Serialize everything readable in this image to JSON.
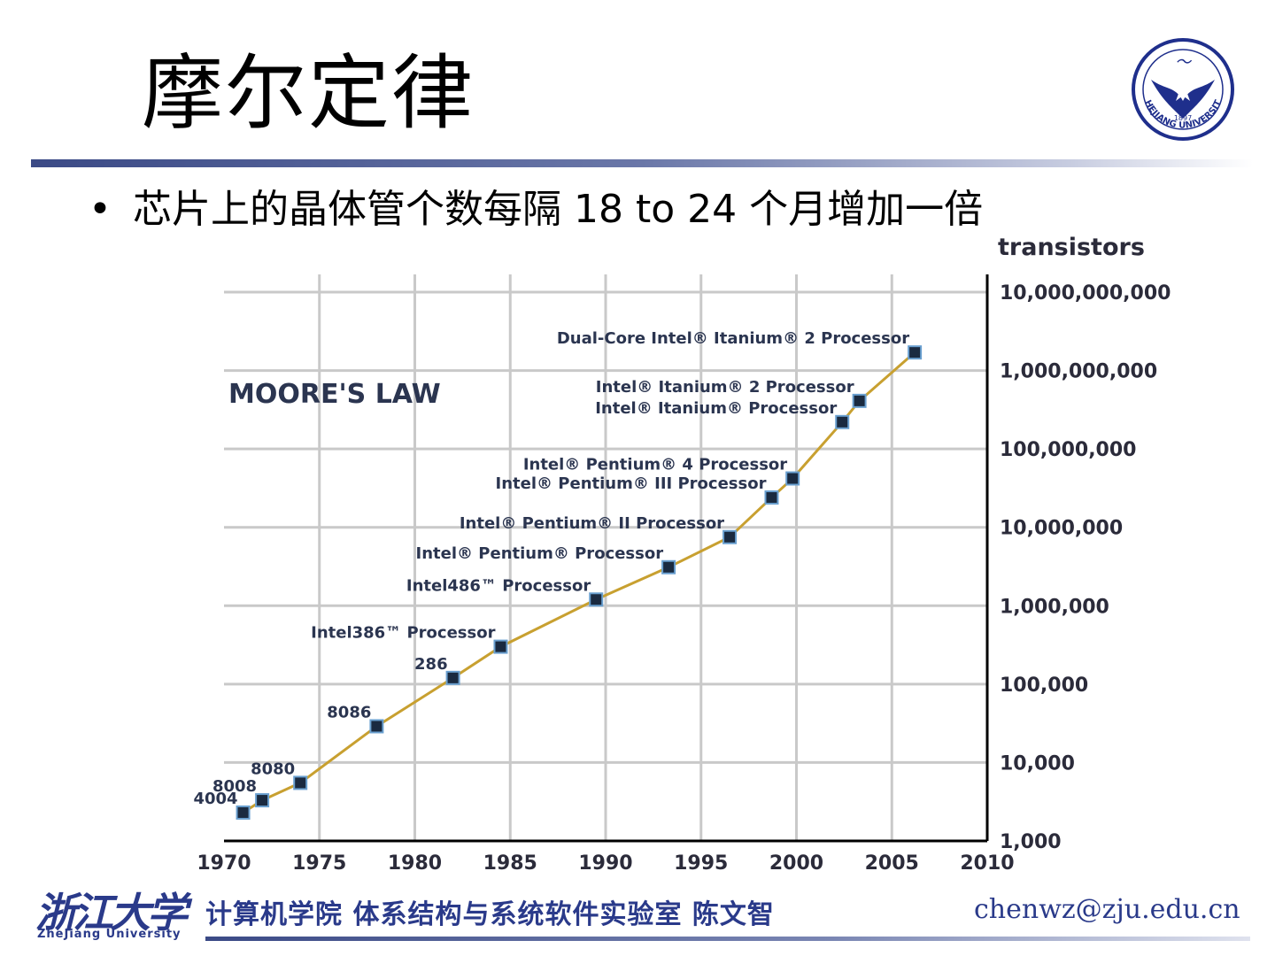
{
  "slide": {
    "title": "摩尔定律",
    "bullet": "芯片上的晶体管个数每隔 18 to 24 个月增加一倍"
  },
  "logo": {
    "icon": "zhejiang-university-seal-icon",
    "year": "1897",
    "text": "ZHEJIANG UNIVERSITY",
    "color": "#1f2f8c"
  },
  "footer": {
    "university_cn": "浙江大学",
    "university_en": "ZheJiang University",
    "lab": "计算机学院 体系结构与系统软件实验室 陈文智",
    "email": "chenwz@zju.edu.cn"
  },
  "chart_data": {
    "type": "line",
    "title": "MOORE'S LAW",
    "ylabel": "transistors",
    "xlabel": "",
    "yscale": "log",
    "xlim": [
      1970,
      2010
    ],
    "ylim": [
      1000,
      10000000000
    ],
    "x_ticks": [
      "1970",
      "1975",
      "1980",
      "1985",
      "1990",
      "1995",
      "2000",
      "2005",
      "2010"
    ],
    "y_ticks": [
      {
        "value": 10000000000,
        "label": "10,000,000,000"
      },
      {
        "value": 1000000000,
        "label": "1,000,000,000"
      },
      {
        "value": 100000000,
        "label": "100,000,000"
      },
      {
        "value": 10000000,
        "label": "10,000,000"
      },
      {
        "value": 1000000,
        "label": "1,000,000"
      },
      {
        "value": 100000,
        "label": "100,000"
      },
      {
        "value": 10000,
        "label": "10,000"
      },
      {
        "value": 1000,
        "label": "1,000"
      }
    ],
    "grid": true,
    "line_color": "#c8a030",
    "points": [
      {
        "label": "4004",
        "x": 1971,
        "y": 2300,
        "side": "left"
      },
      {
        "label": "8008",
        "x": 1972,
        "y": 3300,
        "side": "left"
      },
      {
        "label": "8080",
        "x": 1974,
        "y": 5500,
        "side": "left"
      },
      {
        "label": "8086",
        "x": 1978,
        "y": 29000,
        "side": "left"
      },
      {
        "label": "286",
        "x": 1982,
        "y": 120000,
        "side": "left"
      },
      {
        "label": "Intel386™ Processor",
        "x": 1984.5,
        "y": 300000,
        "side": "left"
      },
      {
        "label": "Intel486™ Processor",
        "x": 1989.5,
        "y": 1200000,
        "side": "left"
      },
      {
        "label": "Intel® Pentium® Processor",
        "x": 1993.3,
        "y": 3100000,
        "side": "left"
      },
      {
        "label": "Intel® Pentium® II Processor",
        "x": 1996.5,
        "y": 7500000,
        "side": "left"
      },
      {
        "label": "Intel® Pentium® III Processor",
        "x": 1998.7,
        "y": 24000000,
        "side": "left"
      },
      {
        "label": "Intel® Pentium® 4 Processor",
        "x": 1999.8,
        "y": 42000000,
        "side": "left"
      },
      {
        "label": "Intel® Itanium® Processor",
        "x": 2002.4,
        "y": 220000000,
        "side": "left"
      },
      {
        "label": "Intel® Itanium® 2 Processor",
        "x": 2003.3,
        "y": 410000000,
        "side": "left"
      },
      {
        "label": "Dual-Core Intel® Itanium® 2 Processor",
        "x": 2006.2,
        "y": 1700000000,
        "side": "left"
      }
    ]
  }
}
